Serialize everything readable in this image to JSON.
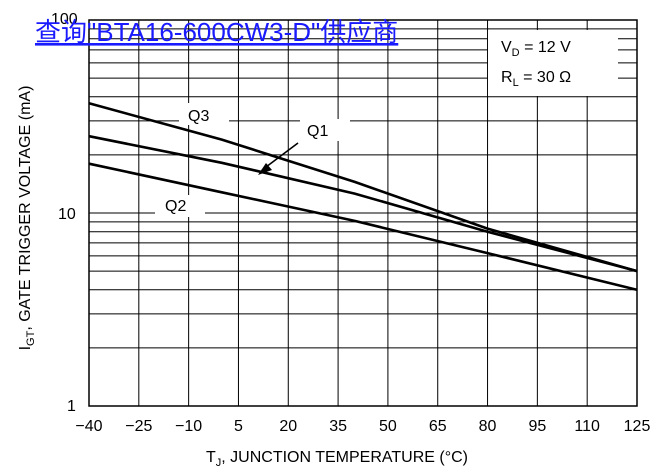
{
  "link_text": "查询\"BTA16-600CW3-D\"供应商",
  "chart_data": {
    "type": "line",
    "xlabel_main": "T",
    "xlabel_sub": "J",
    "xlabel_rest": ", JUNCTION TEMPERATURE (°C)",
    "ylabel_main": "I",
    "ylabel_sub": "GT",
    "ylabel_rest": ", GATE TRIGGER VOLTAGE (mA)",
    "x_ticks": [
      "−40",
      "−25",
      "−10",
      "5",
      "20",
      "35",
      "50",
      "65",
      "80",
      "95",
      "110",
      "125"
    ],
    "x_values": [
      -40,
      -25,
      -10,
      5,
      20,
      35,
      50,
      65,
      80,
      95,
      110,
      125
    ],
    "y_ticks": [
      "1",
      "10",
      "100"
    ],
    "xlim": [
      -40,
      125
    ],
    "ylim": [
      1,
      100
    ],
    "yscale": "log",
    "conditions": {
      "vd_main": "V",
      "vd_sub": "D",
      "vd_rest": " = 12 V",
      "rl_main": "R",
      "rl_sub": "L",
      "rl_rest": " = 30 Ω"
    },
    "series": [
      {
        "name": "Q3",
        "x": [
          -40,
          0,
          40,
          80,
          125
        ],
        "y": [
          37,
          24,
          14.5,
          8.3,
          5.0
        ]
      },
      {
        "name": "Q1",
        "x": [
          -40,
          0,
          40,
          80,
          125
        ],
        "y": [
          25,
          18.2,
          12.6,
          8.0,
          5.0
        ]
      },
      {
        "name": "Q2",
        "x": [
          -40,
          0,
          40,
          80,
          125
        ],
        "y": [
          18,
          12.8,
          9.1,
          6.2,
          4.0
        ]
      }
    ]
  }
}
